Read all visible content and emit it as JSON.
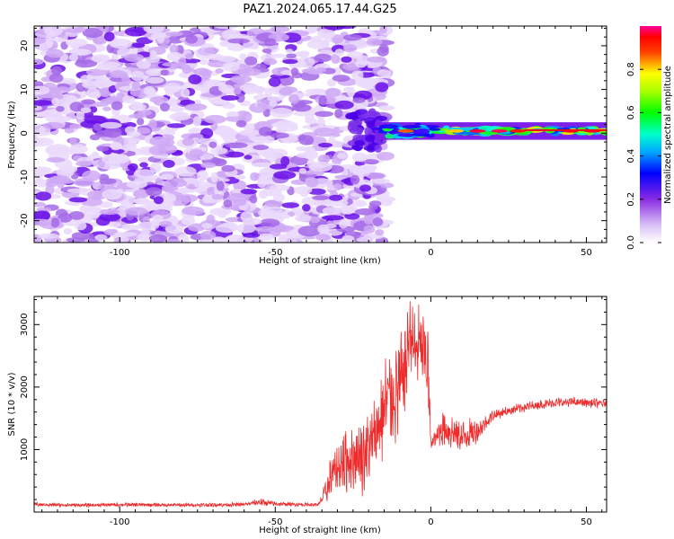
{
  "title": "PAZ1.2024.065.17.44.G25",
  "chart_data": [
    {
      "type": "heatmap",
      "xlabel": "Height of straight line (km)",
      "ylabel": "Frequency (Hz)",
      "xlim": [
        -127.5,
        56.5
      ],
      "ylim": [
        -25,
        24.5
      ],
      "x_ticks": [
        -100,
        -50,
        0,
        50
      ],
      "x_tick_labels": [
        "-100",
        "-50",
        "0",
        "50"
      ],
      "y_ticks": [
        -20,
        -10,
        0,
        10,
        20
      ],
      "y_tick_labels": [
        "-20",
        "-10",
        "0",
        "10",
        "20"
      ],
      "colorbar": {
        "label": "Normalized spectral amplitude",
        "range": [
          0.0,
          1.0
        ],
        "ticks": [
          0.0,
          0.2,
          0.4,
          0.6,
          0.8
        ],
        "tick_labels": [
          "0.0",
          "0.2",
          "0.4",
          "0.6",
          "0.8"
        ],
        "colormap": [
          "#ffffff",
          "#c9a8f5",
          "#8a2be2",
          "#5500ff",
          "#0000ff",
          "#00ffff",
          "#00ff00",
          "#ffff00",
          "#ff0000",
          "#ff0099"
        ]
      },
      "regions": [
        {
          "x_range": [
            -127.5,
            -18
          ],
          "y_range": [
            -25,
            24.5
          ],
          "description": "diffuse noise",
          "amplitude_range": [
            0.0,
            0.15
          ]
        },
        {
          "x_range": [
            -18,
            56.5
          ],
          "y_range": [
            -1.5,
            2.5
          ],
          "center_frequency": 0.5,
          "description": "carrier line",
          "amplitude_range": [
            0.2,
            0.95
          ]
        }
      ],
      "grid": false
    },
    {
      "type": "line",
      "xlabel": "Height of straight line (km)",
      "ylabel": "SNR (10 * v/v)",
      "xlim": [
        -127.5,
        56.5
      ],
      "ylim": [
        0,
        3450
      ],
      "x_ticks": [
        -100,
        -50,
        0,
        50
      ],
      "x_tick_labels": [
        "-100",
        "-50",
        "0",
        "50"
      ],
      "y_ticks": [
        1000,
        2000,
        3000
      ],
      "y_tick_labels": [
        "1000",
        "2000",
        "3000"
      ],
      "color": "#ee2a2a",
      "grid": false,
      "series": [
        {
          "x": [
            -127.5,
            -120,
            -110,
            -100,
            -90,
            -80,
            -70,
            -60,
            -55,
            -50,
            -45,
            -40,
            -36,
            -33,
            -32,
            -30,
            -28,
            -26,
            -24,
            -22,
            -20,
            -18,
            -16,
            -14,
            -12,
            -10,
            -8,
            -7,
            -6,
            -5,
            -4,
            -3,
            -2,
            -1,
            0,
            1,
            2,
            3,
            4,
            6,
            8,
            10,
            12,
            15,
            18,
            20,
            25,
            30,
            35,
            40,
            45,
            50,
            56.5
          ],
          "y": [
            120,
            115,
            110,
            118,
            115,
            112,
            115,
            120,
            160,
            130,
            125,
            120,
            120,
            400,
            600,
            700,
            800,
            850,
            900,
            900,
            1000,
            1200,
            1500,
            1800,
            1900,
            2000,
            2300,
            2900,
            2800,
            2500,
            2700,
            2600,
            2500,
            2400,
            1100,
            1150,
            1200,
            1300,
            1350,
            1300,
            1250,
            1200,
            1250,
            1300,
            1450,
            1550,
            1620,
            1680,
            1720,
            1750,
            1760,
            1750,
            1730
          ],
          "amplitude": [
            25,
            25,
            25,
            25,
            25,
            25,
            25,
            25,
            50,
            30,
            25,
            25,
            25,
            200,
            300,
            300,
            400,
            400,
            400,
            500,
            500,
            550,
            600,
            650,
            700,
            700,
            600,
            400,
            500,
            600,
            500,
            500,
            500,
            600,
            80,
            100,
            150,
            200,
            250,
            250,
            200,
            200,
            200,
            150,
            80,
            70,
            60,
            60,
            60,
            60,
            60,
            60,
            60
          ]
        }
      ]
    }
  ]
}
